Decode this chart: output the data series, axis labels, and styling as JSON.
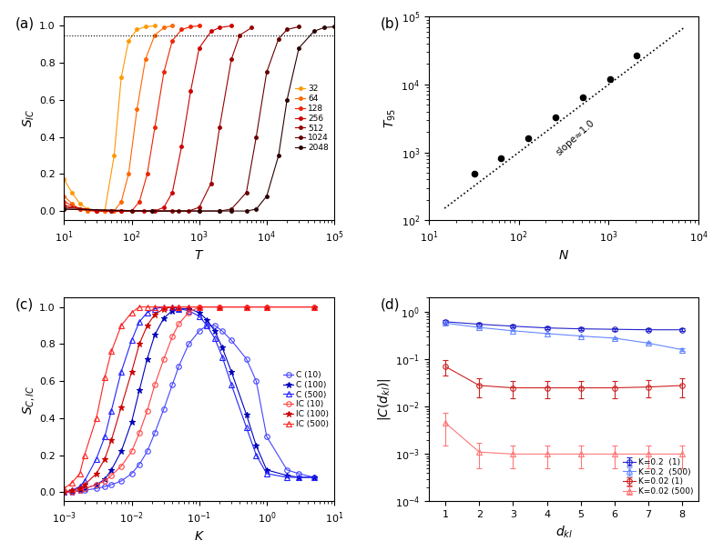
{
  "panel_a": {
    "xlabel": "T",
    "ylabel": "S_{IC}",
    "xlim": [
      10,
      100000
    ],
    "ylim": [
      -0.05,
      1.05
    ],
    "hline_y": 0.95,
    "series": [
      {
        "label": "32",
        "color": "#FF9900",
        "T": [
          10,
          13,
          17,
          22,
          30,
          40,
          55,
          70,
          90,
          120,
          160,
          220
        ],
        "S": [
          0.17,
          0.1,
          0.04,
          0.01,
          0.0,
          0.0,
          0.3,
          0.72,
          0.92,
          0.98,
          0.995,
          1.0
        ]
      },
      {
        "label": "64",
        "color": "#FF6600",
        "T": [
          10,
          13,
          17,
          22,
          30,
          40,
          55,
          70,
          90,
          120,
          160,
          220,
          300,
          400
        ],
        "S": [
          0.08,
          0.04,
          0.01,
          0.0,
          0.0,
          0.0,
          0.0,
          0.05,
          0.2,
          0.55,
          0.82,
          0.95,
          0.99,
          1.0
        ]
      },
      {
        "label": "128",
        "color": "#EE2200",
        "T": [
          10,
          17,
          30,
          50,
          70,
          100,
          130,
          170,
          220,
          300,
          400,
          550,
          750,
          1000
        ],
        "S": [
          0.05,
          0.01,
          0.0,
          0.0,
          0.0,
          0.0,
          0.05,
          0.2,
          0.45,
          0.75,
          0.92,
          0.98,
          0.995,
          1.0
        ]
      },
      {
        "label": "256",
        "color": "#CC0000",
        "T": [
          10,
          30,
          70,
          150,
          220,
          300,
          400,
          550,
          750,
          1000,
          1500,
          2000,
          3000
        ],
        "S": [
          0.03,
          0.0,
          0.0,
          0.0,
          0.0,
          0.02,
          0.1,
          0.35,
          0.65,
          0.88,
          0.97,
          0.99,
          1.0
        ]
      },
      {
        "label": "512",
        "color": "#990000",
        "T": [
          10,
          50,
          200,
          400,
          700,
          1000,
          1500,
          2000,
          3000,
          4000,
          6000
        ],
        "S": [
          0.02,
          0.0,
          0.0,
          0.0,
          0.0,
          0.02,
          0.15,
          0.45,
          0.82,
          0.95,
          0.99
        ]
      },
      {
        "label": "1024",
        "color": "#660000",
        "T": [
          10,
          100,
          500,
          1000,
          2000,
          3000,
          5000,
          7000,
          10000,
          15000,
          20000,
          30000
        ],
        "S": [
          0.01,
          0.0,
          0.0,
          0.0,
          0.0,
          0.01,
          0.1,
          0.4,
          0.75,
          0.93,
          0.98,
          0.995
        ]
      },
      {
        "label": "2048",
        "color": "#2B0000",
        "T": [
          10,
          200,
          1000,
          2000,
          3000,
          5000,
          7000,
          10000,
          15000,
          20000,
          30000,
          50000,
          70000,
          100000
        ],
        "S": [
          0.01,
          0.0,
          0.0,
          0.0,
          0.0,
          0.0,
          0.01,
          0.08,
          0.3,
          0.6,
          0.88,
          0.97,
          0.99,
          0.995
        ]
      }
    ]
  },
  "panel_b": {
    "xlabel": "N",
    "ylabel": "T_{95}",
    "xlim": [
      10,
      10000
    ],
    "ylim": [
      100,
      100000
    ],
    "scatter_N": [
      32,
      64,
      128,
      256,
      512,
      1024,
      2048
    ],
    "scatter_T95": [
      480,
      820,
      1600,
      3300,
      6500,
      12000,
      27000
    ],
    "line_N": [
      15,
      7000
    ],
    "line_T95": [
      150,
      70000
    ],
    "slope_label": "slope≈1.0",
    "slope_x": 250,
    "slope_y": 900,
    "slope_rot": 42
  },
  "panel_c": {
    "xlabel": "K",
    "ylabel": "S_{C,IC}",
    "xlim": [
      0.001,
      10
    ],
    "ylim": [
      -0.05,
      1.05
    ],
    "series": [
      {
        "label": "C (10)",
        "color": "#4444FF",
        "marker": "o",
        "filled": false,
        "markersize": 4,
        "K": [
          0.001,
          0.0013,
          0.0017,
          0.002,
          0.003,
          0.004,
          0.005,
          0.007,
          0.01,
          0.013,
          0.017,
          0.022,
          0.03,
          0.04,
          0.05,
          0.07,
          0.1,
          0.13,
          0.17,
          0.22,
          0.3,
          0.5,
          0.7,
          1.0,
          2.0,
          3.0,
          5.0
        ],
        "S": [
          0.0,
          0.0,
          0.01,
          0.01,
          0.02,
          0.03,
          0.04,
          0.06,
          0.1,
          0.15,
          0.22,
          0.32,
          0.45,
          0.58,
          0.68,
          0.8,
          0.87,
          0.9,
          0.9,
          0.87,
          0.82,
          0.72,
          0.6,
          0.3,
          0.12,
          0.1,
          0.08
        ]
      },
      {
        "label": "C (100)",
        "color": "#0000BB",
        "marker": "*",
        "filled": true,
        "markersize": 5,
        "K": [
          0.001,
          0.0013,
          0.0017,
          0.002,
          0.003,
          0.004,
          0.005,
          0.007,
          0.01,
          0.013,
          0.017,
          0.022,
          0.03,
          0.04,
          0.05,
          0.07,
          0.1,
          0.13,
          0.17,
          0.22,
          0.3,
          0.5,
          0.7,
          1.0,
          2.0,
          3.0,
          5.0
        ],
        "S": [
          0.0,
          0.0,
          0.01,
          0.02,
          0.04,
          0.07,
          0.12,
          0.22,
          0.38,
          0.55,
          0.72,
          0.85,
          0.94,
          0.98,
          0.99,
          0.99,
          0.97,
          0.93,
          0.87,
          0.78,
          0.65,
          0.42,
          0.25,
          0.12,
          0.09,
          0.08,
          0.08
        ]
      },
      {
        "label": "C (500)",
        "color": "#2222FF",
        "marker": "^",
        "filled": false,
        "markersize": 4,
        "K": [
          0.001,
          0.0013,
          0.0017,
          0.002,
          0.003,
          0.004,
          0.005,
          0.007,
          0.01,
          0.013,
          0.017,
          0.022,
          0.03,
          0.04,
          0.05,
          0.07,
          0.1,
          0.13,
          0.17,
          0.22,
          0.3,
          0.5,
          0.7,
          1.0,
          2.0,
          3.0,
          5.0
        ],
        "S": [
          0.0,
          0.01,
          0.03,
          0.06,
          0.18,
          0.3,
          0.44,
          0.65,
          0.82,
          0.92,
          0.97,
          0.99,
          1.0,
          1.0,
          0.99,
          0.98,
          0.95,
          0.9,
          0.83,
          0.73,
          0.58,
          0.35,
          0.2,
          0.1,
          0.08,
          0.08,
          0.08
        ]
      },
      {
        "label": "IC (10)",
        "color": "#FF4444",
        "marker": "o",
        "filled": false,
        "markersize": 4,
        "K": [
          0.001,
          0.0013,
          0.0017,
          0.002,
          0.003,
          0.004,
          0.005,
          0.007,
          0.01,
          0.013,
          0.017,
          0.022,
          0.03,
          0.04,
          0.05,
          0.07,
          0.1,
          0.2,
          0.5,
          1.0,
          5.0
        ],
        "S": [
          0.0,
          0.0,
          0.01,
          0.02,
          0.04,
          0.06,
          0.09,
          0.14,
          0.22,
          0.32,
          0.44,
          0.58,
          0.72,
          0.84,
          0.91,
          0.97,
          1.0,
          1.0,
          1.0,
          1.0,
          1.0
        ]
      },
      {
        "label": "IC (100)",
        "color": "#CC0000",
        "marker": "*",
        "filled": true,
        "markersize": 5,
        "K": [
          0.001,
          0.0013,
          0.0017,
          0.002,
          0.003,
          0.004,
          0.005,
          0.007,
          0.01,
          0.013,
          0.017,
          0.022,
          0.03,
          0.04,
          0.05,
          0.07,
          0.1,
          0.2,
          0.5,
          1.0,
          5.0
        ],
        "S": [
          0.0,
          0.01,
          0.02,
          0.04,
          0.1,
          0.18,
          0.28,
          0.46,
          0.65,
          0.8,
          0.9,
          0.96,
          0.99,
          1.0,
          1.0,
          1.0,
          1.0,
          1.0,
          1.0,
          1.0,
          1.0
        ]
      },
      {
        "label": "IC (500)",
        "color": "#FF2222",
        "marker": "^",
        "filled": false,
        "markersize": 4,
        "K": [
          0.001,
          0.0013,
          0.0017,
          0.002,
          0.003,
          0.004,
          0.005,
          0.007,
          0.01,
          0.013,
          0.017,
          0.022,
          0.03,
          0.05,
          0.1,
          0.2,
          0.5,
          1.0,
          5.0
        ],
        "S": [
          0.02,
          0.05,
          0.1,
          0.2,
          0.4,
          0.62,
          0.76,
          0.9,
          0.97,
          1.0,
          1.0,
          1.0,
          1.0,
          1.0,
          1.0,
          1.0,
          1.0,
          1.0,
          1.0
        ]
      }
    ]
  },
  "panel_d": {
    "xlabel": "d_{kl}",
    "ylabel": "|C(d_{kl})|",
    "xlim": [
      0.5,
      8.5
    ],
    "ylim": [
      0.0001,
      2.0
    ],
    "series": [
      {
        "label": "K=0.2  (1)",
        "color": "#2222CC",
        "marker": "o",
        "filled": false,
        "d": [
          1,
          2,
          3,
          4,
          5,
          6,
          7,
          8
        ],
        "C": [
          0.62,
          0.55,
          0.5,
          0.46,
          0.44,
          0.43,
          0.42,
          0.42
        ],
        "Cerr": [
          0.04,
          0.035,
          0.03,
          0.03,
          0.025,
          0.025,
          0.025,
          0.025
        ]
      },
      {
        "label": "K=0.2  (500)",
        "color": "#6688FF",
        "marker": "^",
        "filled": false,
        "d": [
          1,
          2,
          3,
          4,
          5,
          6,
          7,
          8
        ],
        "C": [
          0.58,
          0.47,
          0.4,
          0.35,
          0.31,
          0.28,
          0.22,
          0.16
        ],
        "Cerr": [
          0.015,
          0.012,
          0.01,
          0.01,
          0.01,
          0.01,
          0.01,
          0.01
        ]
      },
      {
        "label": "K=0.02 (1)",
        "color": "#CC2222",
        "marker": "o",
        "filled": false,
        "d": [
          1,
          2,
          3,
          4,
          5,
          6,
          7,
          8
        ],
        "C": [
          0.07,
          0.028,
          0.025,
          0.025,
          0.025,
          0.025,
          0.026,
          0.028
        ],
        "Cerr": [
          0.025,
          0.012,
          0.01,
          0.01,
          0.01,
          0.01,
          0.01,
          0.012
        ]
      },
      {
        "label": "K=0.02 (500)",
        "color": "#FF7777",
        "marker": "^",
        "filled": false,
        "d": [
          1,
          2,
          3,
          4,
          5,
          6,
          7,
          8
        ],
        "C": [
          0.0045,
          0.0011,
          0.001,
          0.001,
          0.001,
          0.001,
          0.001,
          0.001
        ],
        "Cerr": [
          0.003,
          0.0006,
          0.0005,
          0.0005,
          0.0005,
          0.0005,
          0.0005,
          0.0005
        ]
      }
    ]
  }
}
